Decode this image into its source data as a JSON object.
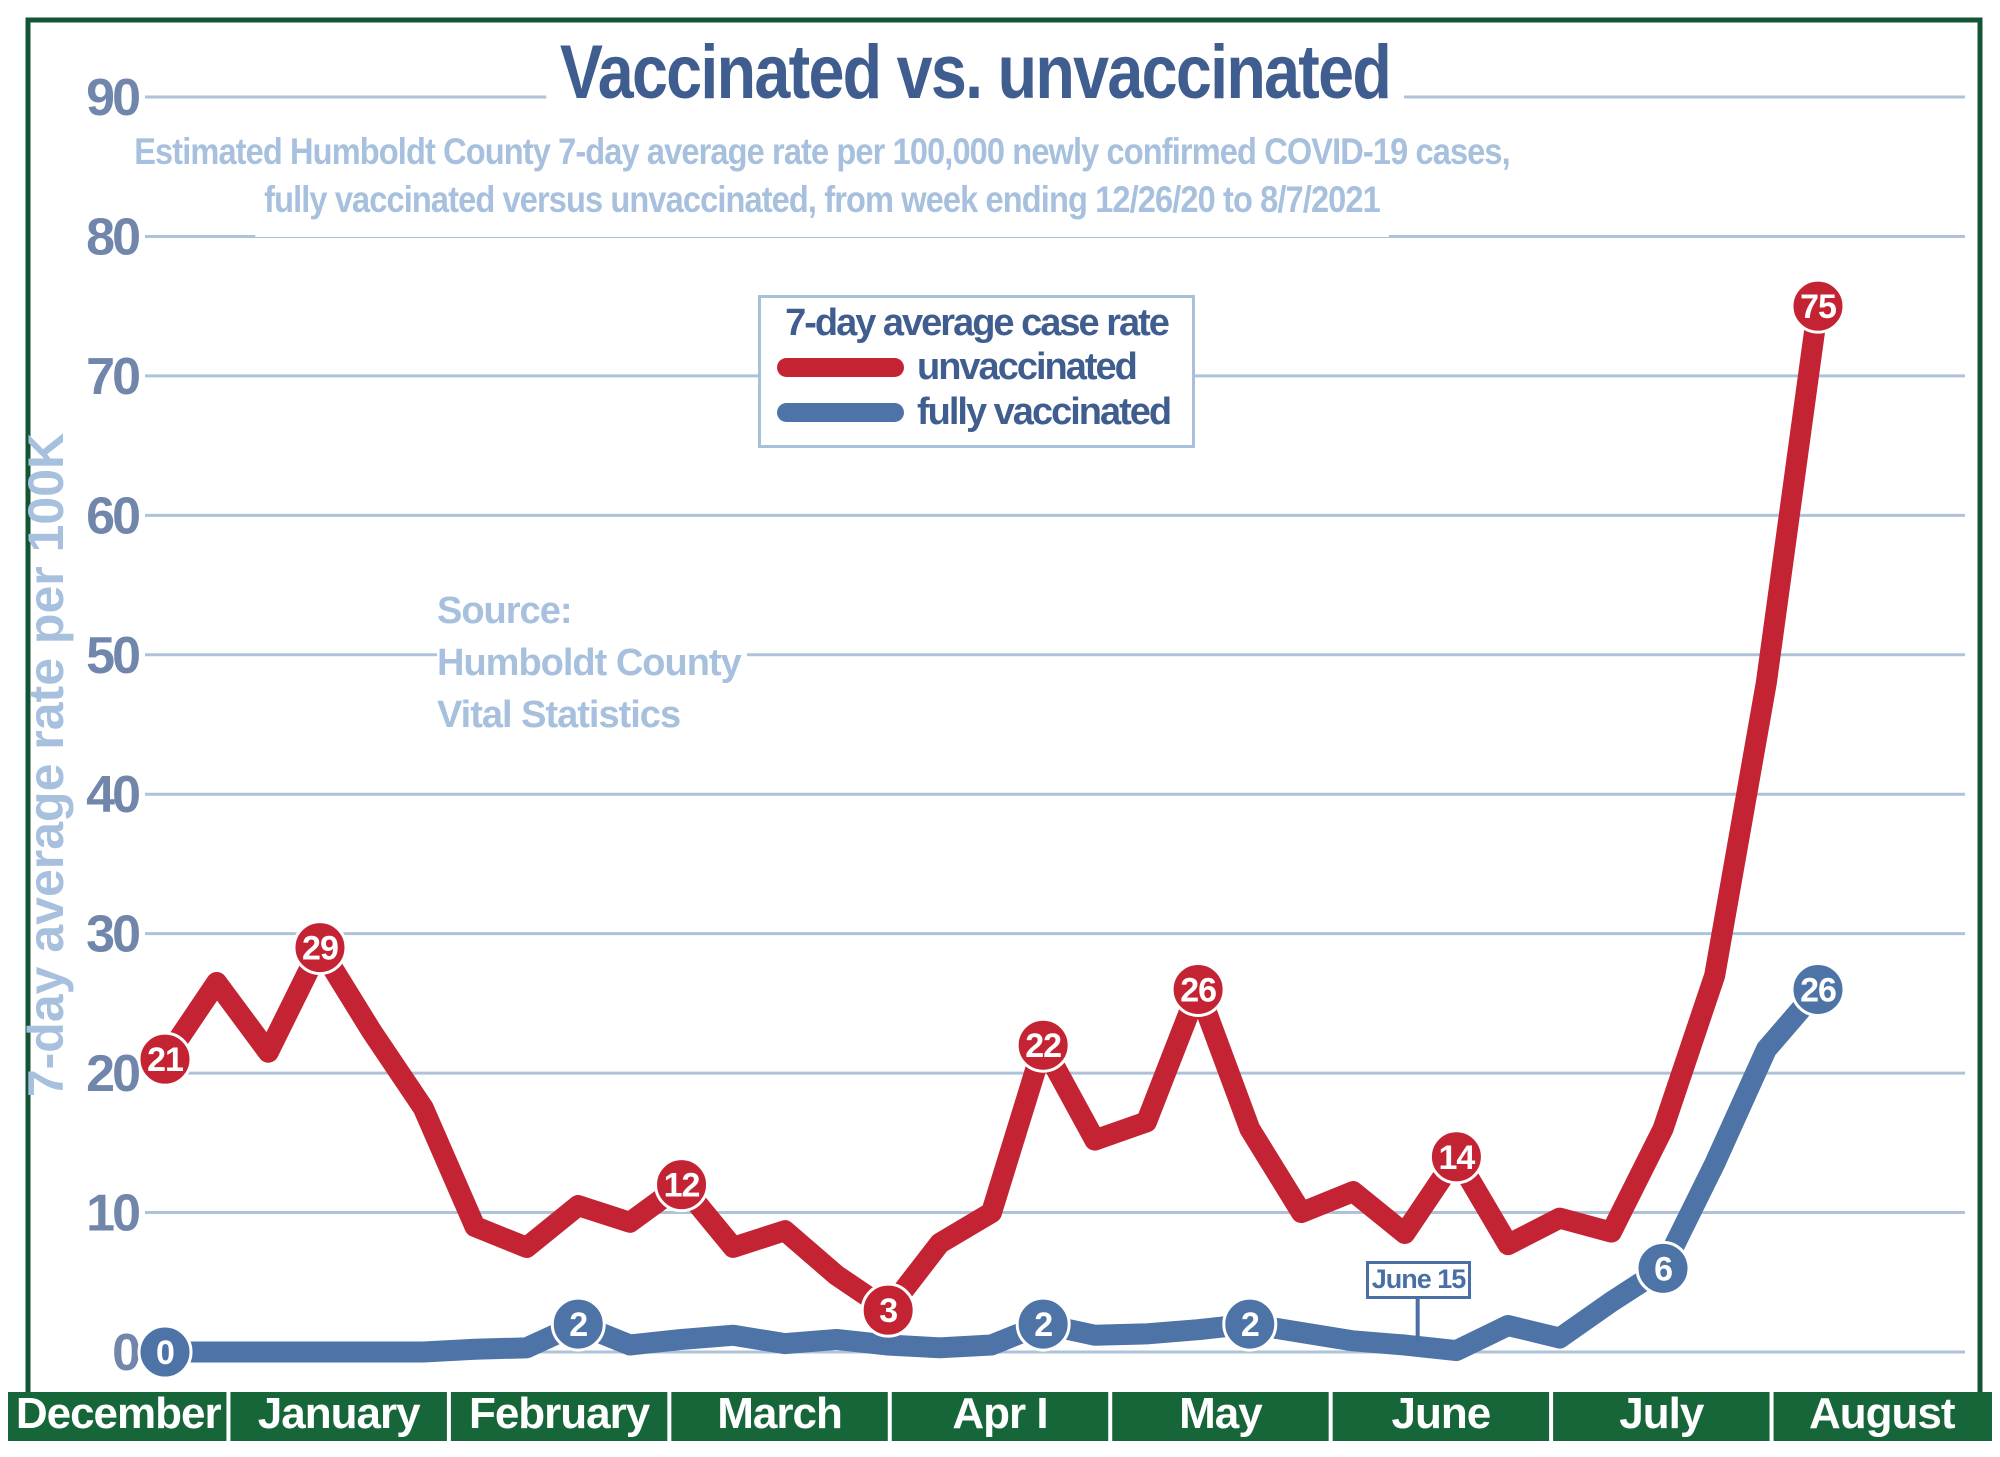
{
  "title": "Vaccinated vs. unvaccinated",
  "subtitle_line1": "Estimated Humboldt County 7-day average rate per 100,000 newly confirmed COVID-19 cases,",
  "subtitle_line2": "fully vaccinated versus unvaccinated, from week ending 12/26/20 to 8/7/2021",
  "y_axis_title": "7-day average rate per 100K",
  "legend": {
    "title": "7-day average case rate",
    "series1": "unvaccinated",
    "series2": "fully vaccinated"
  },
  "source": {
    "line1": "Source:",
    "line2": "Humboldt County",
    "line3": "Vital Statistics"
  },
  "annotation": {
    "text": "June 15",
    "week": 24.25
  },
  "colors": {
    "red": "#c42333",
    "blue": "#4d73a7",
    "dark_blue": "#3f5d8e",
    "light_blue": "#a6c0dd",
    "tick_label": "#7186ab",
    "gridline": "#aec3d9",
    "green_band": "#17663a",
    "green_frame": "#135434",
    "annotation_blue": "#4a6fa4",
    "white": "#ffffff"
  },
  "chart_data": {
    "type": "line",
    "x_unit": "week (12/26/20 through 8/7/2021, 33 weekly points)",
    "months": [
      "December",
      "January",
      "February",
      "March",
      "Apr I",
      "May",
      "June",
      "July",
      "August"
    ],
    "yticks": [
      0,
      10,
      20,
      30,
      40,
      50,
      60,
      70,
      80,
      90
    ],
    "ylim": [
      0,
      90
    ],
    "grid": true,
    "legend_position": "top-center",
    "series": [
      {
        "name": "unvaccinated",
        "color_key": "red",
        "values": [
          21,
          26.5,
          21.5,
          29,
          23,
          17.5,
          9,
          7.5,
          10.5,
          9.3,
          12,
          7.5,
          8.7,
          5.5,
          3,
          7.8,
          10,
          22,
          15.2,
          16.5,
          26,
          16,
          10,
          11.5,
          8.5,
          14,
          7.7,
          9.6,
          8.6,
          16,
          27,
          48,
          75
        ],
        "labeled_points": [
          {
            "week": 0,
            "label": "21"
          },
          {
            "week": 3,
            "label": "29"
          },
          {
            "week": 10,
            "label": "12"
          },
          {
            "week": 14,
            "label": "3"
          },
          {
            "week": 17,
            "label": "22"
          },
          {
            "week": 20,
            "label": "26"
          },
          {
            "week": 25,
            "label": "14"
          },
          {
            "week": 32,
            "label": "75"
          }
        ]
      },
      {
        "name": "fully vaccinated",
        "color_key": "blue",
        "values": [
          0,
          0,
          0,
          0,
          0,
          0,
          0.2,
          0.3,
          2,
          0.5,
          0.9,
          1.2,
          0.6,
          0.9,
          0.5,
          0.3,
          0.5,
          2,
          1.2,
          1.3,
          1.6,
          2,
          1.4,
          0.8,
          0.5,
          0.1,
          1.9,
          1,
          3.6,
          6,
          13.5,
          21.7,
          26
        ],
        "labeled_points": [
          {
            "week": 0,
            "label": "0"
          },
          {
            "week": 8,
            "label": "2"
          },
          {
            "week": 17,
            "label": "2"
          },
          {
            "week": 21,
            "label": "2"
          },
          {
            "week": 29,
            "label": "6"
          },
          {
            "week": 32,
            "label": "26"
          }
        ]
      }
    ]
  }
}
